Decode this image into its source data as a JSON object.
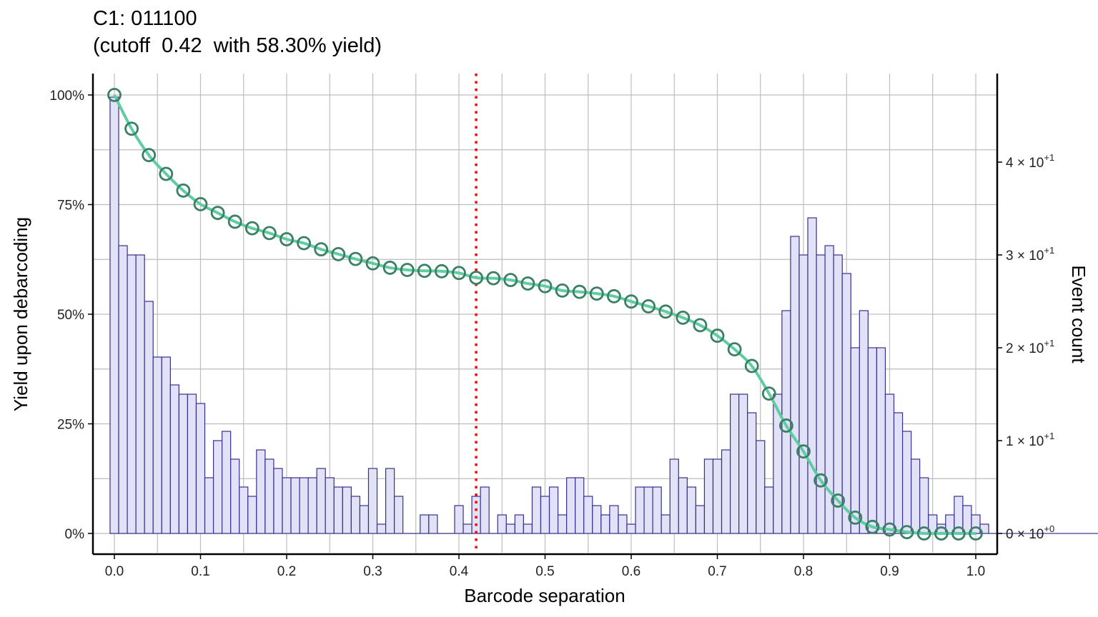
{
  "title_line1": "C1: 011100",
  "title_line2": "(cutoff  0.42  with 58.30% yield)",
  "chart_data": {
    "type": "bar",
    "title": "C1: 011100\n(cutoff  0.42  with 58.30% yield)",
    "xlabel": "Barcode separation",
    "ylabel": "Yield upon debarcoding",
    "y2label": "Event count",
    "xlim": [
      0,
      1
    ],
    "ylim": [
      0,
      1
    ],
    "y2lim": [
      0,
      45
    ],
    "x_ticks": [
      "0.0",
      "0.1",
      "0.2",
      "0.3",
      "0.4",
      "0.5",
      "0.6",
      "0.7",
      "0.8",
      "0.9",
      "1.0"
    ],
    "y_ticks": [
      "0%",
      "25%",
      "50%",
      "75%",
      "100%"
    ],
    "y2_ticks": [
      {
        "base": "0 × 10",
        "exp": "+0",
        "value": 0
      },
      {
        "base": "1 × 10",
        "exp": "+1",
        "value": 10
      },
      {
        "base": "2 × 10",
        "exp": "+1",
        "value": 20
      },
      {
        "base": "3 × 10",
        "exp": "+1",
        "value": 30
      },
      {
        "base": "4 × 10",
        "exp": "+1",
        "value": 40
      }
    ],
    "cutoff": 0.42,
    "grid": true,
    "colors": {
      "bar_fill": "#e1e1f7",
      "bar_stroke": "#3b2f8a",
      "line": "#5fcda0",
      "points": "#3a7f66",
      "cutoff_line": "#ff0000",
      "grid": "#bdbdbd"
    },
    "histogram": {
      "bin_width": 0.01,
      "counts": [
        47,
        31,
        30,
        30,
        25,
        19,
        19,
        16,
        15,
        15,
        14,
        6,
        10,
        11,
        8,
        5,
        4,
        9,
        8,
        7,
        6,
        6,
        6,
        6,
        7,
        6,
        5,
        5,
        4,
        3,
        7,
        1,
        7,
        4,
        0,
        0,
        2,
        2,
        0,
        0,
        3,
        1,
        4,
        5,
        0,
        2,
        1,
        2,
        1,
        5,
        4,
        5,
        2,
        6,
        6,
        4,
        3,
        2,
        3,
        2,
        1,
        5,
        5,
        5,
        2,
        8,
        6,
        5,
        3,
        8,
        8,
        9,
        15,
        15,
        13,
        10,
        5,
        15,
        24,
        32,
        30,
        34,
        30,
        31,
        30,
        28,
        20,
        24,
        20,
        20,
        15,
        13,
        11,
        8,
        6,
        2,
        1,
        2,
        4,
        3,
        2,
        1,
        0,
        0,
        0,
        0,
        0,
        0,
        0,
        0,
        0,
        0,
        0,
        0,
        0,
        0,
        0,
        0,
        0,
        0,
        0
      ]
    },
    "yield_curve": {
      "x": [
        0.0,
        0.02,
        0.04,
        0.06,
        0.08,
        0.1,
        0.12,
        0.14,
        0.16,
        0.18,
        0.2,
        0.22,
        0.24,
        0.26,
        0.28,
        0.3,
        0.32,
        0.34,
        0.36,
        0.38,
        0.4,
        0.42,
        0.44,
        0.46,
        0.48,
        0.5,
        0.52,
        0.54,
        0.56,
        0.58,
        0.6,
        0.62,
        0.64,
        0.66,
        0.68,
        0.7,
        0.72,
        0.74,
        0.76,
        0.78,
        0.8,
        0.82,
        0.84,
        0.86,
        0.88,
        0.9,
        0.92,
        0.94,
        0.96,
        0.98,
        1.0
      ],
      "y": [
        1.0,
        0.923,
        0.863,
        0.82,
        0.782,
        0.751,
        0.731,
        0.711,
        0.696,
        0.685,
        0.671,
        0.662,
        0.648,
        0.637,
        0.626,
        0.616,
        0.606,
        0.601,
        0.599,
        0.598,
        0.594,
        0.583,
        0.582,
        0.578,
        0.57,
        0.564,
        0.554,
        0.551,
        0.547,
        0.541,
        0.529,
        0.518,
        0.506,
        0.492,
        0.475,
        0.451,
        0.42,
        0.382,
        0.319,
        0.246,
        0.187,
        0.121,
        0.075,
        0.036,
        0.015,
        0.009,
        0.003,
        0.0,
        0.0,
        0.0,
        0.0
      ]
    }
  }
}
